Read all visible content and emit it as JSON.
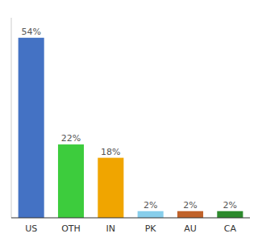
{
  "chart_data": {
    "type": "bar",
    "categories": [
      "US",
      "OTH",
      "IN",
      "PK",
      "AU",
      "CA"
    ],
    "values": [
      54,
      22,
      18,
      2,
      2,
      2
    ],
    "value_labels": [
      "54%",
      "22%",
      "18%",
      "2%",
      "2%",
      "2%"
    ],
    "colors": [
      "#4472c4",
      "#3dcc3d",
      "#f0a500",
      "#87ceeb",
      "#c0622a",
      "#2d8a2d"
    ],
    "ylim": [
      0,
      60
    ],
    "data_labels": true,
    "tick_labels": "x",
    "grid": false
  }
}
